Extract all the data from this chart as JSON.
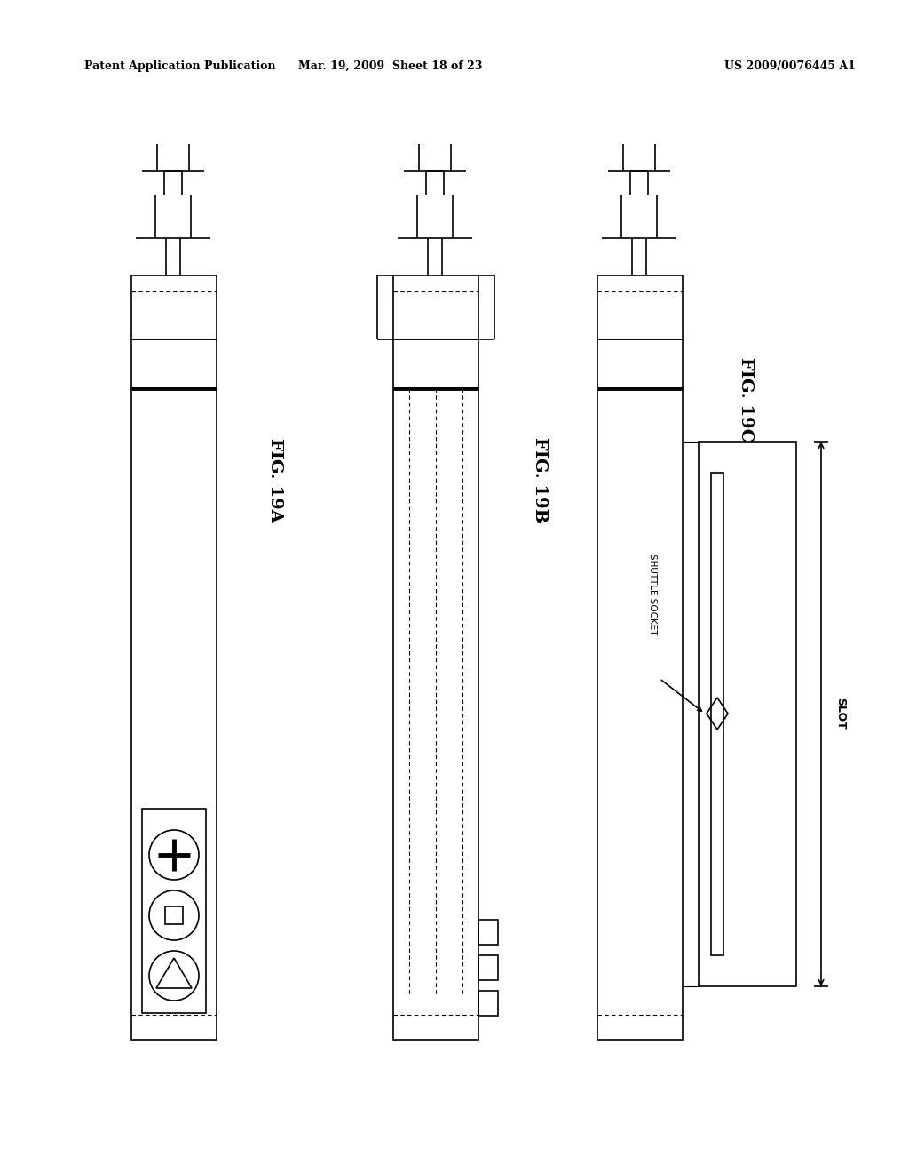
{
  "header_left": "Patent Application Publication",
  "header_mid": "Mar. 19, 2009  Sheet 18 of 23",
  "header_right": "US 2009/0076445 A1",
  "bg_color": "#ffffff",
  "line_color": "#000000",
  "lw": 1.2,
  "blw": 3.5,
  "fig19a_label": "FIG. 19A",
  "fig19b_label": "FIG. 19B",
  "fig19c_label": "FIG. 19C",
  "slot_label": "SLOT",
  "shuttle_label": "SHUTTLE SOCKET"
}
